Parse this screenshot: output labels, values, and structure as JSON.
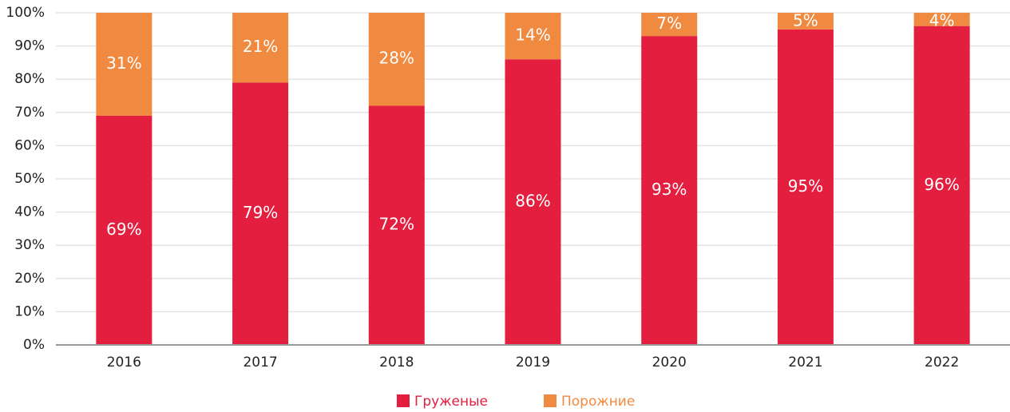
{
  "chart_data": {
    "type": "stacked_bar",
    "categories": [
      "2016",
      "2017",
      "2018",
      "2019",
      "2020",
      "2021",
      "2022"
    ],
    "series": [
      {
        "name": "Груженые",
        "color": "#e31e3f",
        "values": [
          69,
          79,
          72,
          86,
          93,
          95,
          96
        ],
        "value_labels": [
          "69%",
          "79%",
          "72%",
          "86%",
          "93%",
          "95%",
          "96%"
        ]
      },
      {
        "name": "Порожние",
        "color": "#f08a40",
        "values": [
          31,
          21,
          28,
          14,
          7,
          5,
          4
        ],
        "value_labels": [
          "31%",
          "21%",
          "28%",
          "14%",
          "7%",
          "5%",
          "4%"
        ]
      }
    ],
    "ylim": [
      0,
      100
    ],
    "yticks": [
      {
        "value": 0,
        "label": "0%"
      },
      {
        "value": 10,
        "label": "10%"
      },
      {
        "value": 20,
        "label": "20%"
      },
      {
        "value": 30,
        "label": "30%"
      },
      {
        "value": 40,
        "label": "40%"
      },
      {
        "value": 50,
        "label": "50%"
      },
      {
        "value": 60,
        "label": "60%"
      },
      {
        "value": 70,
        "label": "70%"
      },
      {
        "value": 80,
        "label": "80%"
      },
      {
        "value": 90,
        "label": "90%"
      },
      {
        "value": 100,
        "label": "100%"
      }
    ],
    "grid": true,
    "legend": "bottom"
  }
}
